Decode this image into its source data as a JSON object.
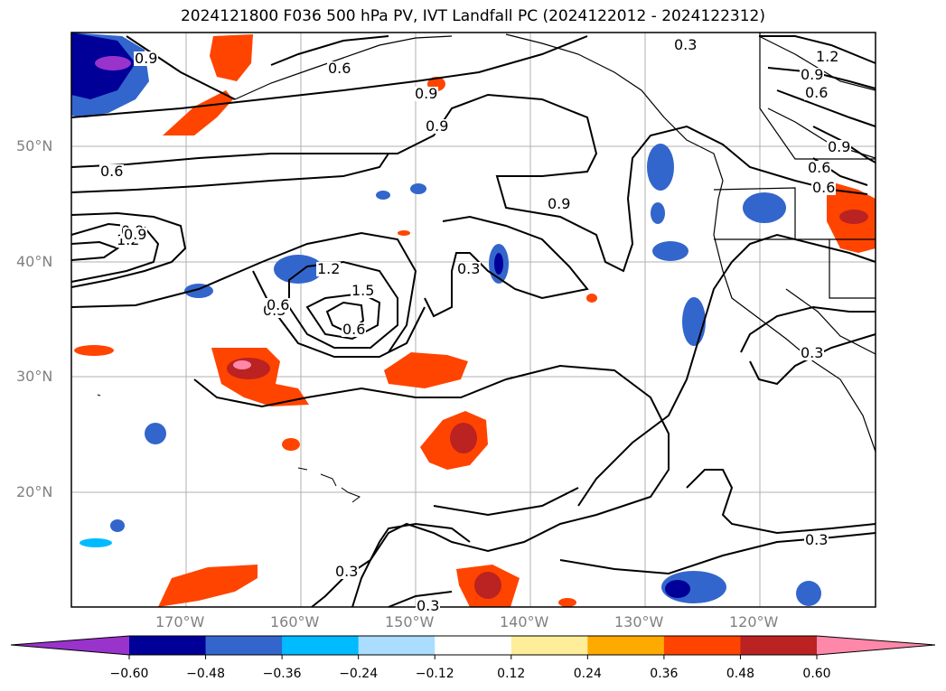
{
  "title": "2024121800 F036 500 hPa PV, IVT Landfall PC (2024122012 - 2024122312)",
  "lat_labels": [
    "50°N",
    "40°N",
    "30°N",
    "20°N"
  ],
  "lon_labels": [
    "170°W",
    "160°W",
    "150°W",
    "140°W",
    "130°W",
    "120°W"
  ],
  "contour_labels": [
    "0.9",
    "0.6",
    "0.9",
    "0.3",
    "1.2",
    "0.9",
    "0.6",
    "0.9",
    "0.6",
    "0.9",
    "0.9",
    "1.2",
    "0.9",
    "1.2",
    "1.5",
    "0.6",
    "0.3",
    "0.3",
    "0.3",
    "0.3",
    "0.3",
    "0.6",
    "0.6",
    "0.3",
    "0.9",
    "0.6"
  ],
  "colorbar": {
    "ticks": [
      "−0.60",
      "−0.48",
      "−0.36",
      "−0.24",
      "−0.12",
      "0.12",
      "0.24",
      "0.36",
      "0.48",
      "0.60"
    ],
    "colors": [
      "#9933cc",
      "#000099",
      "#3366cc",
      "#00bbff",
      "#aaddff",
      "#ffffff",
      "#ffee99",
      "#ffaa00",
      "#ff4400",
      "#bb2222",
      "#ff88aa"
    ]
  }
}
